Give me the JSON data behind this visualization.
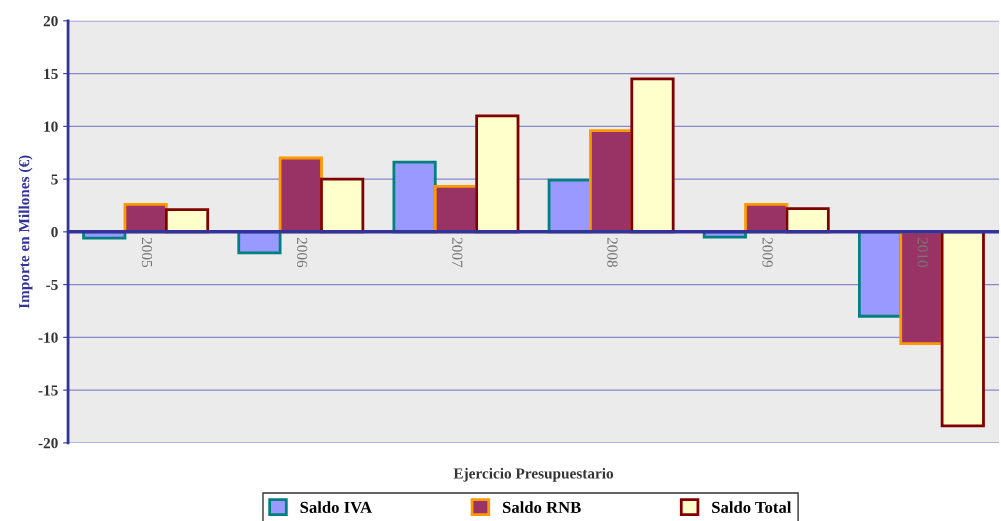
{
  "chart_data": {
    "type": "bar",
    "xlabel": "Ejercicio Presupuestario",
    "ylabel": "Importe en Millones (€)",
    "categories": [
      "2005",
      "2006",
      "2007",
      "2008",
      "2009",
      "2010"
    ],
    "series": [
      {
        "name": "Saldo IVA",
        "color": "#9999ff",
        "values": [
          -0.6,
          -2.0,
          6.6,
          4.9,
          -0.5,
          -8.0
        ]
      },
      {
        "name": "Saldo RNB",
        "color": "#993366",
        "values": [
          2.6,
          7.0,
          4.3,
          9.6,
          2.6,
          -10.6
        ]
      },
      {
        "name": "Saldo Total",
        "color": "#ffffcc",
        "values": [
          2.1,
          5.0,
          11.0,
          14.5,
          2.2,
          -18.4
        ]
      }
    ],
    "ylim": [
      -20,
      20
    ],
    "yticks": [
      -20,
      -15,
      -10,
      -5,
      0,
      5,
      10,
      15,
      20
    ],
    "grid": "y",
    "legend": "bottom"
  }
}
